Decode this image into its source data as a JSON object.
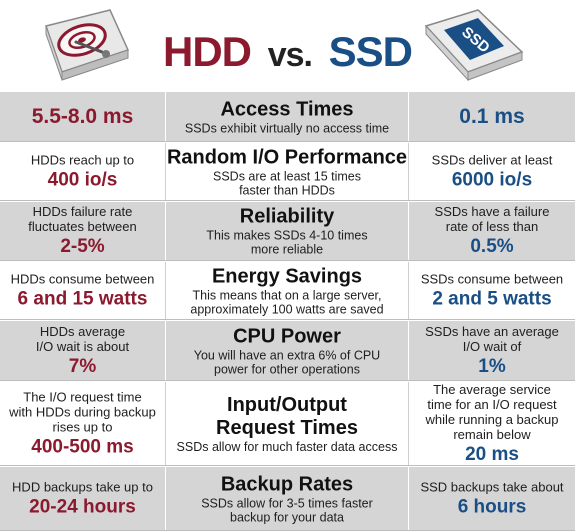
{
  "header": {
    "hdd_label": "HDD",
    "vs_label": "vs.",
    "ssd_label": "SSD",
    "ssd_art_text": "SSD"
  },
  "colors": {
    "hdd_accent": "#8b1a2f",
    "ssd_accent": "#1a4f86",
    "row_shade": "#d5d5d5"
  },
  "rows": [
    {
      "title": "Access Times",
      "desc": [
        "SSDs exhibit virtually no access time"
      ],
      "hdd_small": [],
      "hdd_big": "5.5-8.0 ms",
      "ssd_small": [],
      "ssd_big": "0.1 ms"
    },
    {
      "title": "Random I/O Performance",
      "desc": [
        "SSDs are at least 15 times",
        "faster than HDDs"
      ],
      "hdd_small": [
        "HDDs reach up to"
      ],
      "hdd_big": "400 io/s",
      "ssd_small": [
        "SSDs deliver at least"
      ],
      "ssd_big": "6000 io/s"
    },
    {
      "title": "Reliability",
      "desc": [
        "This makes SSDs 4-10 times",
        "more reliable"
      ],
      "hdd_small": [
        "HDDs failure rate",
        "fluctuates between"
      ],
      "hdd_big": "2-5%",
      "ssd_small": [
        "SSDs have a failure",
        "rate of less than"
      ],
      "ssd_big": "0.5%"
    },
    {
      "title": "Energy Savings",
      "desc": [
        "This means that on a large server,",
        "approximately 100 watts are saved"
      ],
      "hdd_small": [
        "HDDs consume between"
      ],
      "hdd_big": "6 and 15 watts",
      "ssd_small": [
        "SSDs consume between"
      ],
      "ssd_big": "2 and 5 watts"
    },
    {
      "title": "CPU Power",
      "desc": [
        "You will have an extra 6% of CPU",
        "power for other operations"
      ],
      "hdd_small": [
        "HDDs average",
        "I/O wait is about"
      ],
      "hdd_big": "7%",
      "ssd_small": [
        "SSDs have an average",
        "I/O wait of"
      ],
      "ssd_big": "1%"
    },
    {
      "title": "Input/Output\nRequest Times",
      "desc": [
        "SSDs allow for much faster data access"
      ],
      "hdd_small": [
        "The I/O request time",
        "with HDDs during backup",
        "rises up to"
      ],
      "hdd_big": "400-500 ms",
      "ssd_small": [
        "The average service",
        "time for an I/O request",
        "while running a backup",
        "remain below"
      ],
      "ssd_big": "20 ms"
    },
    {
      "title": "Backup Rates",
      "desc": [
        "SSDs allow for 3-5 times faster",
        "backup for your data"
      ],
      "hdd_small": [
        "HDD backups take up to"
      ],
      "hdd_big": "20-24 hours",
      "ssd_small": [
        "SSD backups take about"
      ],
      "ssd_big": "6 hours"
    }
  ]
}
